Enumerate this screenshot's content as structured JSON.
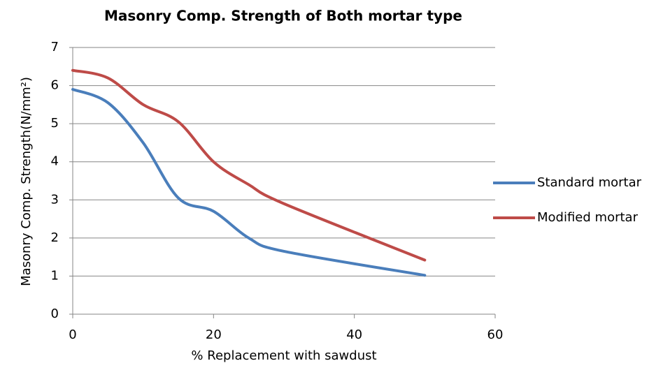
{
  "chart_data": {
    "type": "line",
    "title": "Masonry Comp. Strength of Both mortar type",
    "xlabel": "% Replacement with sawdust",
    "ylabel": "Masonry Comp. Strength(N/mm²)",
    "x": [
      0,
      5,
      10,
      15,
      20,
      25,
      30,
      50
    ],
    "series": [
      {
        "name": "Standard mortar",
        "color": "#4a7ebb",
        "values": [
          5.9,
          5.55,
          4.5,
          3.05,
          2.7,
          2.0,
          1.65,
          1.02
        ]
      },
      {
        "name": "Modified mortar",
        "color": "#be4b48",
        "values": [
          6.4,
          6.2,
          5.5,
          5.05,
          4.0,
          3.4,
          2.9,
          1.42
        ]
      }
    ],
    "xlim": [
      0,
      60
    ],
    "xticks": [
      0,
      20,
      40,
      60
    ],
    "ylim": [
      0,
      7
    ],
    "yticks": [
      0,
      1,
      2,
      3,
      4,
      5,
      6,
      7
    ],
    "grid": true,
    "smooth": true,
    "legend": "right"
  }
}
